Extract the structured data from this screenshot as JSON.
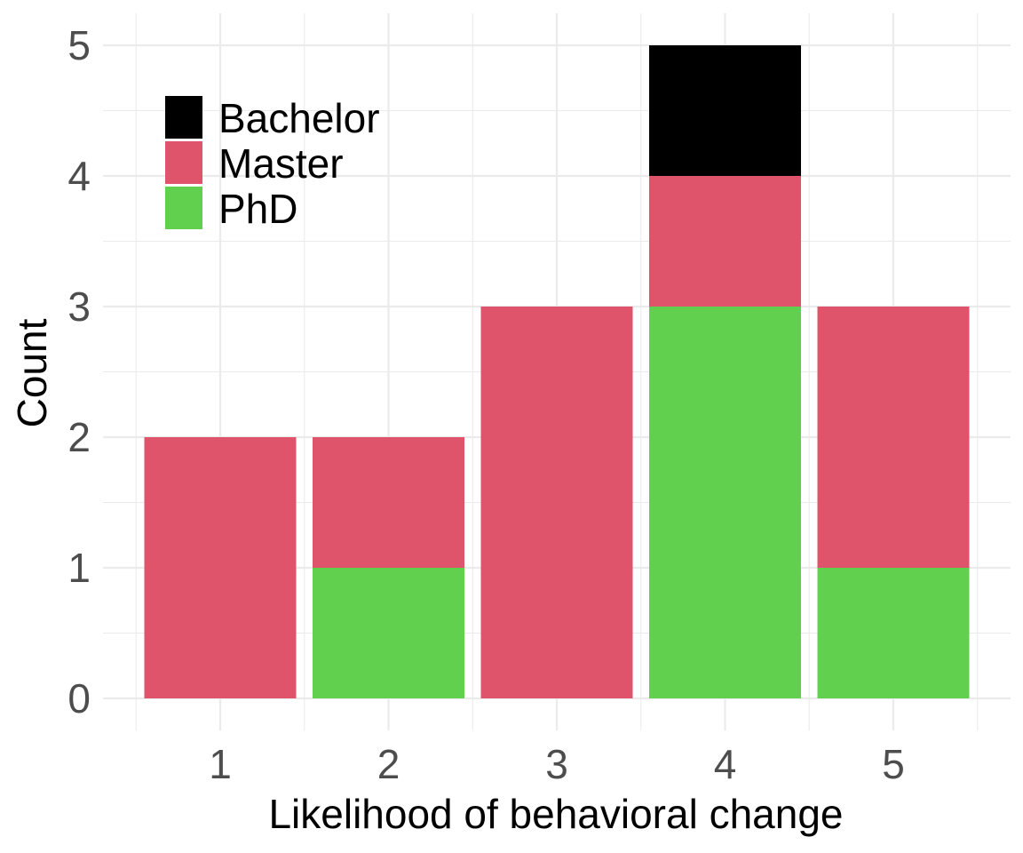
{
  "chart_data": {
    "type": "bar",
    "stacked": true,
    "categories": [
      "1",
      "2",
      "3",
      "4",
      "5"
    ],
    "series": [
      {
        "name": "PhD",
        "color": "#61D04F",
        "values": [
          0,
          1,
          0,
          3,
          1
        ]
      },
      {
        "name": "Master",
        "color": "#DF536B",
        "values": [
          2,
          1,
          3,
          1,
          2
        ]
      },
      {
        "name": "Bachelor",
        "color": "#000000",
        "values": [
          0,
          0,
          0,
          1,
          0
        ]
      }
    ],
    "legend_order": [
      "Bachelor",
      "Master",
      "PhD"
    ],
    "xlabel": "Likelihood of behavioral change",
    "ylabel": "Count",
    "ylim": [
      0,
      5
    ],
    "yticks": [
      "0",
      "1",
      "2",
      "3",
      "4",
      "5"
    ],
    "grid": true,
    "legend_position": "top-left inside"
  }
}
